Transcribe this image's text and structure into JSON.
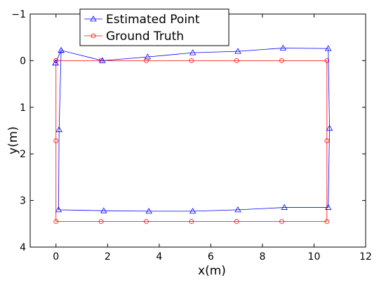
{
  "chart_data": {
    "type": "line",
    "xlabel": "x(m)",
    "ylabel": "y(m)",
    "xlim": [
      -1,
      12
    ],
    "ylim": [
      -1,
      4
    ],
    "y_inverted": true,
    "xticks": [
      0,
      2,
      4,
      6,
      8,
      10,
      12
    ],
    "yticks": [
      -1,
      0,
      1,
      2,
      3,
      4
    ],
    "grid": false,
    "legend_position": "top-left",
    "series": [
      {
        "name": "Estimated Point",
        "color": "#0000ff",
        "marker": "triangle",
        "x": [
          -0.02,
          0.2,
          1.8,
          3.55,
          5.3,
          7.05,
          8.8,
          10.55,
          10.6,
          10.55,
          8.85,
          7.05,
          5.3,
          3.6,
          1.85,
          0.1,
          0.12,
          0.2,
          -0.02
        ],
        "y": [
          0.05,
          -0.22,
          0.0,
          -0.08,
          -0.17,
          -0.2,
          -0.27,
          -0.26,
          1.45,
          3.15,
          3.15,
          3.2,
          3.23,
          3.23,
          3.22,
          3.2,
          1.48,
          -0.22,
          0.05
        ]
      },
      {
        "name": "Ground Truth",
        "color": "#ff0000",
        "marker": "circle",
        "x": [
          0,
          1.75,
          3.5,
          5.25,
          7.0,
          8.75,
          10.5,
          10.5,
          10.5,
          8.75,
          7.0,
          5.25,
          3.5,
          1.75,
          0,
          0,
          0
        ],
        "y": [
          0,
          0,
          0,
          0,
          0,
          0,
          0,
          1.72,
          3.45,
          3.45,
          3.45,
          3.45,
          3.45,
          3.45,
          3.45,
          1.72,
          0
        ]
      }
    ]
  }
}
